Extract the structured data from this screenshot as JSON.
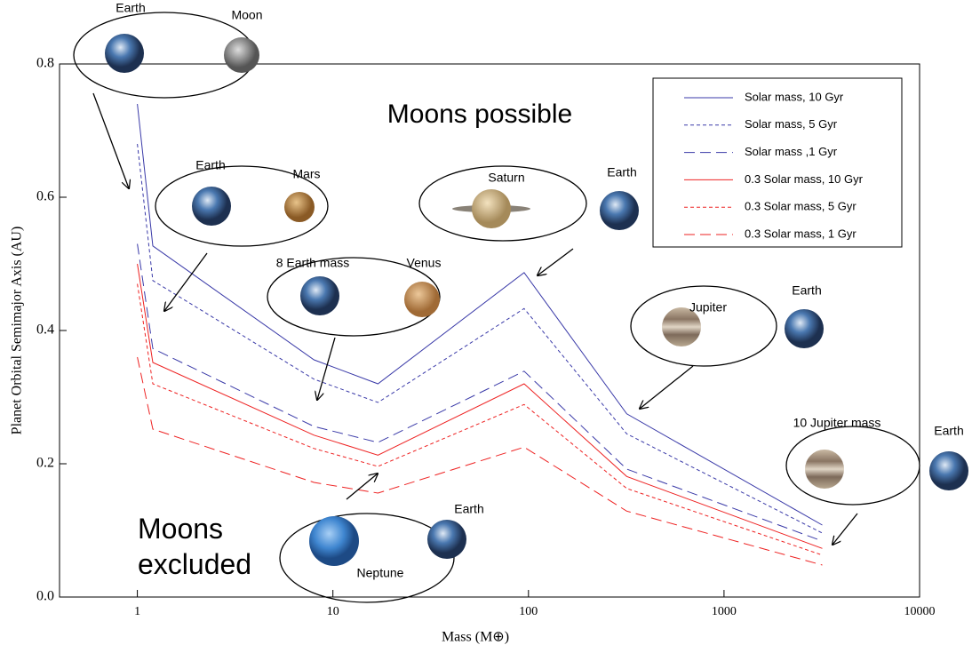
{
  "chart_data": {
    "type": "line",
    "x_label": "Mass (M⊕)",
    "y_label": "Planet Orbital Semimajor Axis (AU)",
    "x": [
      1,
      1.2,
      8,
      17,
      95,
      318,
      3180
    ],
    "xlog": true,
    "xlim": [
      0.4,
      10000
    ],
    "xticks": [
      1,
      10,
      100,
      1000,
      10000
    ],
    "ylim": [
      0,
      0.8
    ],
    "yticks": [
      {
        "value": 0,
        "label": "0.0"
      },
      0.2,
      0.4,
      0.6,
      0.8
    ],
    "legend": "top-right",
    "series": [
      {
        "name": "Solar mass, 10 Gyr",
        "color": "#3a3aa8",
        "dash": "solid",
        "values": [
          0.74,
          0.527,
          0.356,
          0.32,
          0.487,
          0.275,
          0.108
        ]
      },
      {
        "name": "Solar mass, 5 Gyr",
        "color": "#3a3aa8",
        "dash": "short",
        "values": [
          0.68,
          0.475,
          0.327,
          0.292,
          0.433,
          0.245,
          0.096
        ]
      },
      {
        "name": "Solar mass ,1 Gyr",
        "color": "#3a3aa8",
        "dash": "long",
        "values": [
          0.53,
          0.373,
          0.256,
          0.232,
          0.339,
          0.192,
          0.084
        ]
      },
      {
        "name": "0.3 Solar mass, 10 Gyr",
        "color": "#ee2222",
        "dash": "solid",
        "values": [
          0.5,
          0.352,
          0.243,
          0.213,
          0.32,
          0.181,
          0.073
        ]
      },
      {
        "name": "0.3 Solar mass, 5 Gyr",
        "color": "#ee2222",
        "dash": "short",
        "values": [
          0.47,
          0.32,
          0.223,
          0.196,
          0.289,
          0.163,
          0.063
        ]
      },
      {
        "name": "0.3 Solar mass, 1 Gyr",
        "color": "#ee2222",
        "dash": "long",
        "values": [
          0.36,
          0.252,
          0.172,
          0.156,
          0.225,
          0.129,
          0.048
        ]
      }
    ],
    "region_labels": [
      "Moons possible",
      "Moons excluded"
    ],
    "insets": [
      {
        "labels": [
          "Earth",
          "Moon"
        ]
      },
      {
        "labels": [
          "Earth",
          "Mars"
        ]
      },
      {
        "labels": [
          "8 Earth mass",
          "Venus"
        ]
      },
      {
        "labels": [
          "Saturn",
          "Earth"
        ]
      },
      {
        "labels": [
          "Jupiter",
          "Earth"
        ]
      },
      {
        "labels": [
          "10 Jupiter mass",
          "Earth"
        ]
      },
      {
        "labels": [
          "Earth",
          "Neptune"
        ]
      }
    ]
  }
}
